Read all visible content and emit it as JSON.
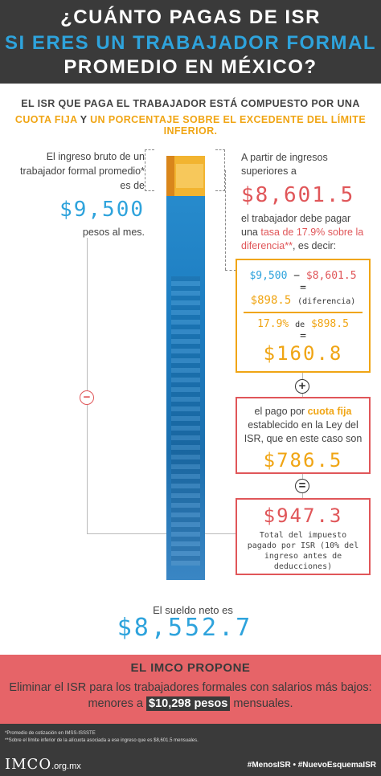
{
  "header": {
    "line1": "¿CUÁNTO PAGAS DE ISR",
    "line2": "SI ERES UN TRABAJADOR FORMAL",
    "line3": "PROMEDIO EN MÉXICO?"
  },
  "intro": {
    "line1": "EL ISR QUE PAGA EL TRABAJADOR ESTÁ COMPUESTO POR UNA",
    "cuota": "CUOTA FIJA",
    "y": "Y",
    "porcentaje": "UN PORCENTAJE SOBRE EL EXCEDENTE DEL LÍMITE INFERIOR."
  },
  "left": {
    "text1": "El ingreso bruto de un trabajador formal promedio* es de",
    "amount": "$9,500",
    "text2": "pesos al mes.",
    "minus": "−"
  },
  "right": {
    "text1": "A partir de ingresos superiores a",
    "amount": "$8,601.5",
    "text2": "el trabajador debe pagar una",
    "highlight": "tasa de 17.9% sobre la diferencia**",
    "text3": ", es decir:"
  },
  "calc": {
    "a": "$9,500",
    "minus": "−",
    "b": "$8,601.5",
    "eq1": "=",
    "diff": "$898.5",
    "diff_label": "(diferencia)",
    "pct": "17.9%",
    "de": "de",
    "diff2": "$898.5",
    "eq2": "=",
    "result": "$160.8"
  },
  "plus": "+",
  "cuota_box": {
    "text1": "el pago por",
    "highlight": "cuota fija",
    "text2": "establecido en la Ley del ISR,  que en este caso son",
    "amount": "$786.5"
  },
  "equals": "=",
  "total_box": {
    "amount": "$947.3",
    "text": "Total del impuesto pagado por ISR (10% del ingreso antes de deducciones)"
  },
  "neto": {
    "label": "El sueldo neto es",
    "amount": "$8,552.7"
  },
  "propone": {
    "title": "EL IMCO PROPONE",
    "line1": "Eliminar el ISR para los trabajadores formales con salarios más bajos:",
    "line2a": "menores a",
    "highlight": "$10,298  pesos",
    "line2b": "mensuales."
  },
  "footer": {
    "note1": "*Promedio de cotización en IMSS-ISSSTE",
    "note2": "**Sobre el límite inferior de la alícuota asociada a ese ingreso que es $8,601.5 mensuales.",
    "logo": "IMCO",
    "domain": ".org.mx",
    "tags": "#MenosISR  •  #NuevoEsquemaISR"
  },
  "colors": {
    "header_bg": "#3a3a3a",
    "blue": "#2ea3dc",
    "orange": "#f0a514",
    "red": "#e05659",
    "propone_bg": "#e66468"
  }
}
